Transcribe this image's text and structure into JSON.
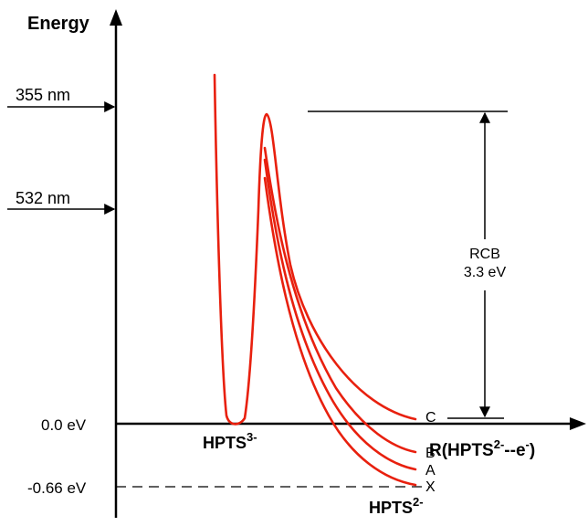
{
  "axes": {
    "y_label": "Energy",
    "x_label": {
      "prefix": "R(HPTS",
      "sup1": "2-",
      "middle": "--e",
      "sup2": "-",
      "suffix": ")"
    }
  },
  "levels": {
    "zero": "0.0 eV",
    "neg": "-0.66 eV"
  },
  "photons": {
    "uv": "355 nm",
    "green": "532 nm"
  },
  "species": {
    "reactant": {
      "base": "HPTS",
      "sup": "3-"
    },
    "product": {
      "base": "HPTS",
      "sup": "2-"
    }
  },
  "rcb": {
    "line1": "RCB",
    "line2": "3.3 eV"
  },
  "curves": {
    "labels": [
      "C",
      "B",
      "A",
      "X"
    ],
    "color": "#e8200e"
  }
}
